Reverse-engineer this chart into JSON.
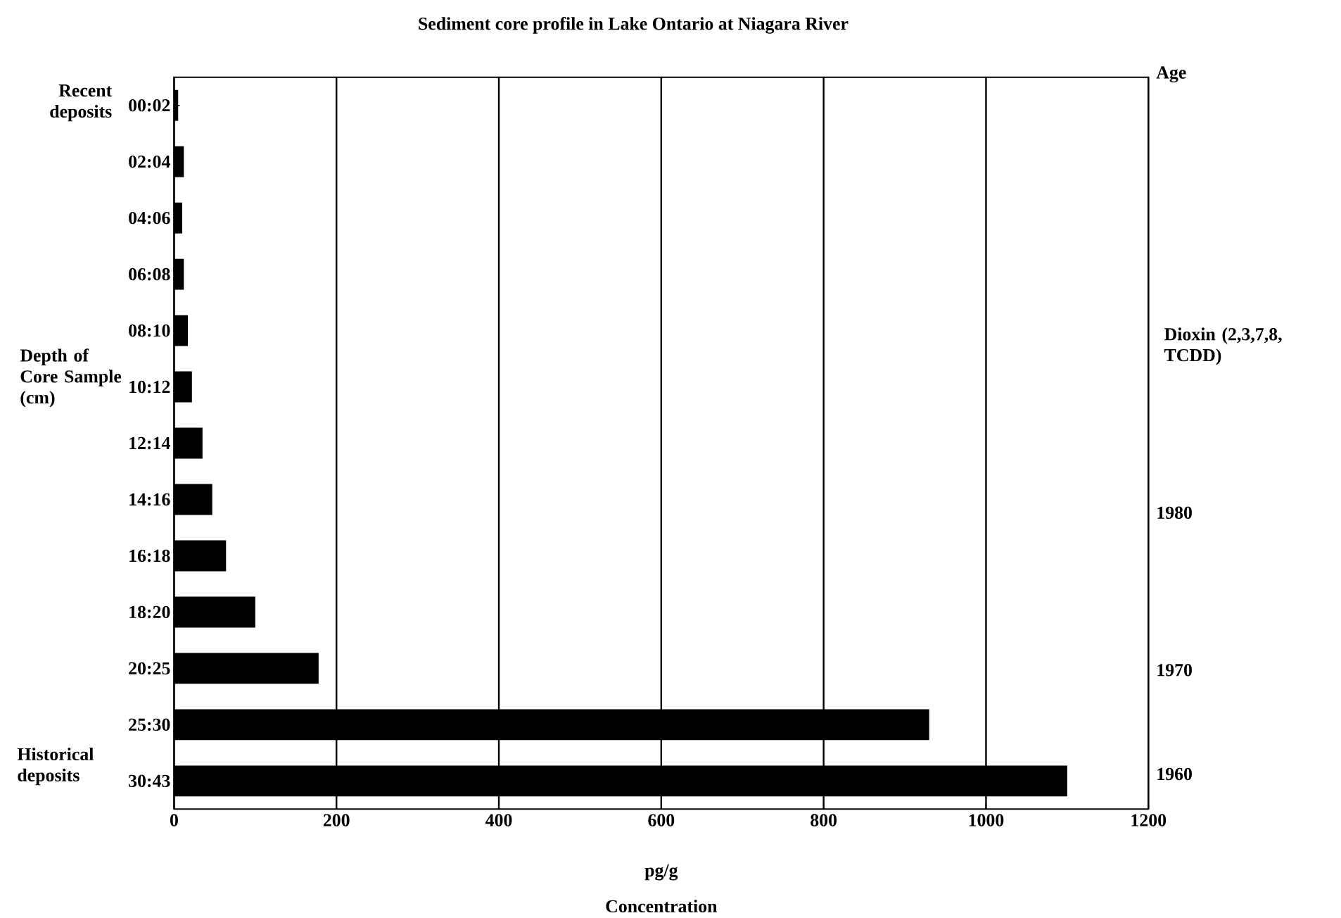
{
  "chart_data": {
    "type": "bar",
    "orientation": "horizontal",
    "title": "Sediment core profile in Lake Ontario at Niagara River",
    "xlabel": "pg/g",
    "ylabel": "Depth of Core Sample (cm)",
    "categories": [
      "00:02",
      "02:04",
      "04:06",
      "06:08",
      "08:10",
      "10:12",
      "12:14",
      "14:16",
      "16:18",
      "18:20",
      "20:25",
      "25:30",
      "30:43"
    ],
    "values": [
      5,
      12,
      10,
      12,
      17,
      22,
      35,
      47,
      64,
      100,
      178,
      930,
      1100
    ],
    "color": "#000000",
    "xlim": [
      0,
      1200
    ],
    "xticks": [
      0,
      200,
      400,
      600,
      800,
      1000,
      1200
    ],
    "grid": "x",
    "annotations": [
      "Age",
      "Dioxin (2,3,7,8, TCDD)",
      "Concentration",
      "Recent deposits",
      "Historical deposits",
      "1980",
      "1970",
      "1960"
    ]
  }
}
